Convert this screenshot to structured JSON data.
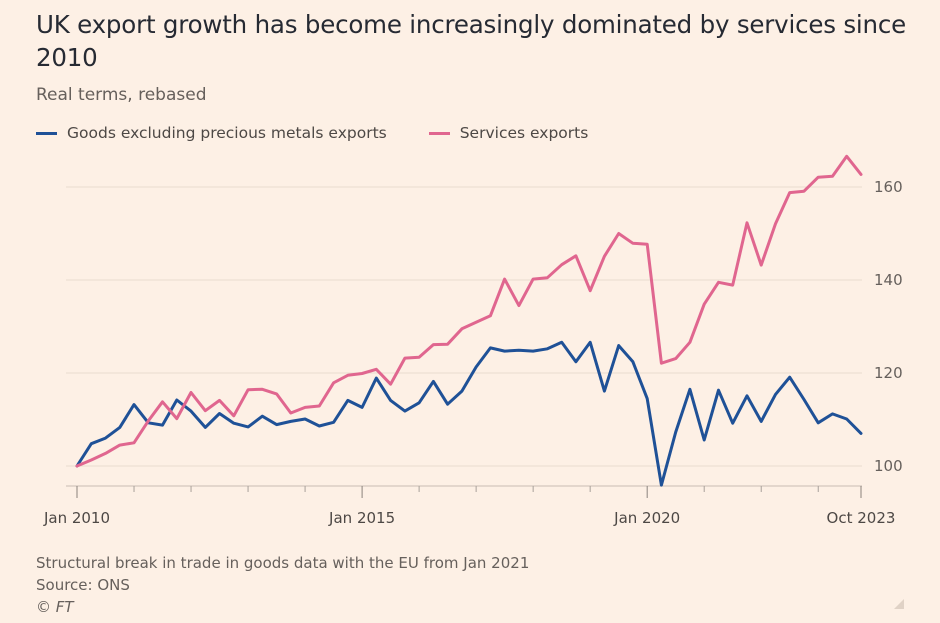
{
  "title": "UK export growth has become increasingly dominated by services since 2010",
  "subtitle": "Real terms, rebased",
  "legend": [
    {
      "label": "Goods excluding precious metals exports",
      "color": "#1f5197"
    },
    {
      "label": "Services exports",
      "color": "#e0668f"
    }
  ],
  "footer": {
    "note": "Structural break in trade in goods data with the EU from Jan 2021",
    "source": "Source: ONS",
    "copyright": "© FT"
  },
  "chart_data": {
    "type": "line",
    "title": "UK export growth has become increasingly dominated by services since 2010",
    "subtitle": "Real terms, rebased",
    "ylim": [
      95,
      165
    ],
    "yticks": [
      100,
      120,
      140,
      160
    ],
    "y_axis_side": "right",
    "grid": true,
    "legend_position": "top-left",
    "x_tick_labels": [
      {
        "index": 0,
        "label": "Jan 2010"
      },
      {
        "index": 20,
        "label": "Jan 2015"
      },
      {
        "index": 40,
        "label": "Jan 2020"
      },
      {
        "index": 55,
        "label": "Oct 2023"
      }
    ],
    "x_unlabeled_tick_indices": [
      4,
      8,
      12,
      16,
      24,
      28,
      32,
      36,
      44,
      48,
      52
    ],
    "x_period": "quarterly, Q1 2010 – Q4 2023",
    "series": [
      {
        "name": "Goods excluding precious metals exports",
        "color": "#1f5197",
        "values": [
          100,
          104.8,
          106,
          108.3,
          113.2,
          109.3,
          108.8,
          114.2,
          111.8,
          108.3,
          111.3,
          109.2,
          108.4,
          110.7,
          108.9,
          109.6,
          110.1,
          108.6,
          109.4,
          114.1,
          112.6,
          118.9,
          114.1,
          111.8,
          113.6,
          118.2,
          113.3,
          116.1,
          121.3,
          125.4,
          124.7,
          124.9,
          124.7,
          125.2,
          126.6,
          122.4,
          126.6,
          116.1,
          125.9,
          122.4,
          114.5,
          95.9,
          107.3,
          116.5,
          105.6,
          116.3,
          109.2,
          115.1,
          109.6,
          115.4,
          119.1,
          114.3,
          109.3,
          111.2,
          110.1,
          107
        ]
      },
      {
        "name": "Services exports",
        "color": "#e0668f",
        "values": [
          100,
          101.3,
          102.7,
          104.5,
          105,
          109.7,
          113.8,
          110.2,
          115.8,
          111.9,
          114.1,
          110.8,
          116.4,
          116.5,
          115.5,
          111.4,
          112.6,
          112.9,
          117.9,
          119.5,
          119.9,
          120.8,
          117.6,
          123.2,
          123.4,
          126.1,
          126.2,
          129.5,
          130.9,
          132.3,
          140.2,
          134.5,
          140.2,
          140.5,
          143.3,
          145.2,
          137.7,
          145.1,
          150,
          147.9,
          147.7,
          122.1,
          123.1,
          126.6,
          134.8,
          139.5,
          138.9,
          152.3,
          143.2,
          152.1,
          158.8,
          159.1,
          162.1,
          162.3,
          166.6,
          162.7
        ]
      }
    ]
  }
}
